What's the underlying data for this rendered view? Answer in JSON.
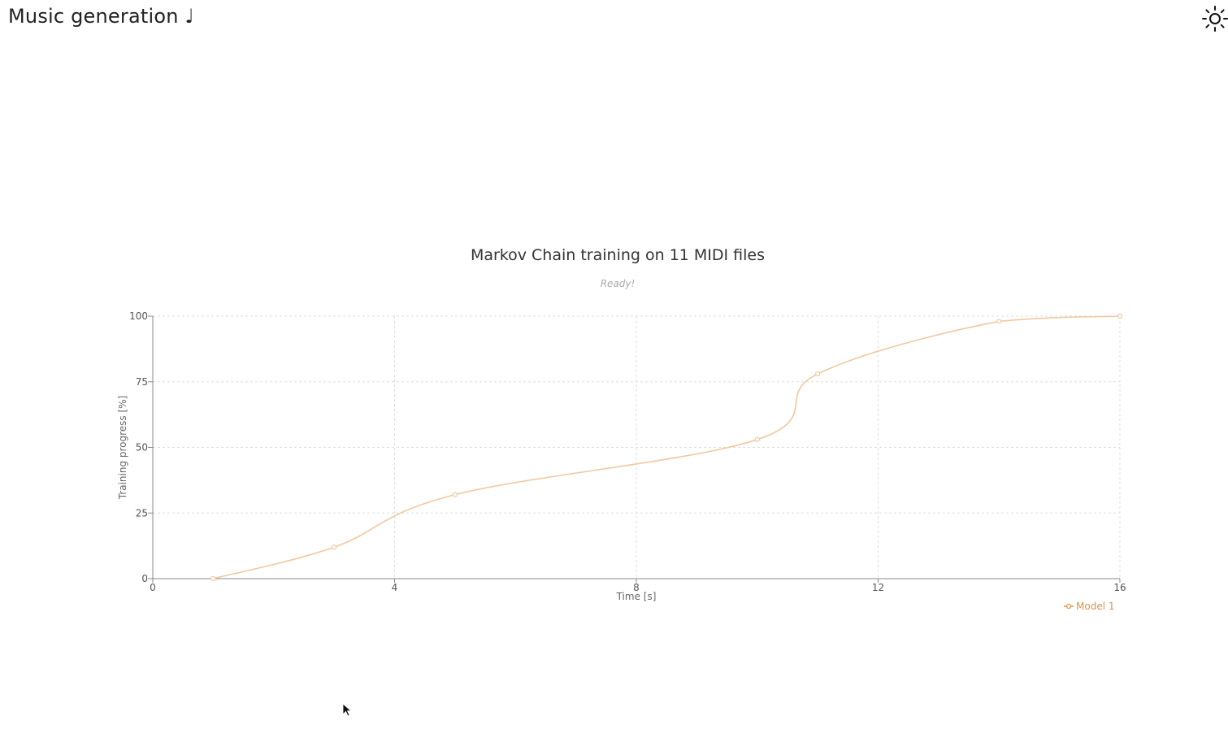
{
  "header": {
    "title": "Music generation ♩",
    "theme_toggle_icon": "sun-icon"
  },
  "chart": {
    "title": "Markov Chain training on 11 MIDI files",
    "subtitle": "Ready!"
  },
  "chart_data": {
    "type": "line",
    "title": "Markov Chain training on 11 MIDI files",
    "subtitle": "Ready!",
    "xlabel": "Time [s]",
    "ylabel": "Training progress [%]",
    "xlim": [
      0,
      16
    ],
    "ylim": [
      0,
      100
    ],
    "xticks": [
      "0",
      "4",
      "8",
      "12",
      "16"
    ],
    "yticks": [
      "0",
      "25",
      "50",
      "75",
      "100"
    ],
    "grid": true,
    "legend_position": "bottom-right",
    "series": [
      {
        "name": "Model 1",
        "color": "#f0c8a0",
        "legend_color": "#e0924a",
        "x": [
          1,
          3,
          5,
          10,
          11,
          14,
          16
        ],
        "y": [
          0,
          12,
          32,
          53,
          78,
          98,
          100
        ]
      }
    ]
  }
}
